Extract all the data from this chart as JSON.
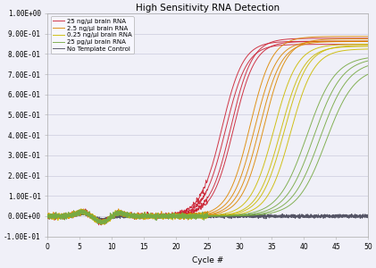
{
  "title": "High Sensitivity RNA Detection",
  "xlabel": "Cycle #",
  "xlim": [
    0,
    50
  ],
  "ylim": [
    -0.1,
    1.0
  ],
  "yticks": [
    -0.1,
    0.0,
    0.1,
    0.2,
    0.3,
    0.4,
    0.5,
    0.6,
    0.7,
    0.8,
    0.9,
    1.0
  ],
  "ytick_labels": [
    "-1.00E-01",
    "0.00E+00",
    "1.00E-01",
    "2.00E-01",
    "3.00E-01",
    "4.00E-01",
    "5.00E-01",
    "6.00E-01",
    "7.00E-01",
    "8.00E-01",
    "9.00E-01",
    "1.00E+00"
  ],
  "xticks": [
    0,
    5,
    10,
    15,
    20,
    25,
    30,
    35,
    40,
    45,
    50
  ],
  "groups": [
    {
      "label": "25 ng/μl brain RNA",
      "color": "#cc2233",
      "midpoints": [
        27.2,
        27.8,
        28.4,
        29.0
      ],
      "plateau": [
        0.86,
        0.85,
        0.87,
        0.86
      ],
      "k": 0.6
    },
    {
      "label": "2.5 ng/μl brain RNA",
      "color": "#dd8800",
      "midpoints": [
        31.5,
        32.2,
        33.0,
        33.6
      ],
      "plateau": [
        0.88,
        0.87,
        0.86,
        0.87
      ],
      "k": 0.58
    },
    {
      "label": "0.25 ng/μl brain RNA",
      "color": "#ccbb00",
      "midpoints": [
        35.5,
        36.2,
        37.0,
        37.6
      ],
      "plateau": [
        0.85,
        0.84,
        0.84,
        0.83
      ],
      "k": 0.55
    },
    {
      "label": "25 pg/μl brain RNA",
      "color": "#77aa44",
      "midpoints": [
        40.5,
        41.5,
        42.5,
        43.5
      ],
      "plateau": [
        0.79,
        0.78,
        0.76,
        0.74
      ],
      "k": 0.45
    },
    {
      "label": "No Template Control",
      "color": "#555566",
      "midpoints": [],
      "plateau": [],
      "k": 0.55
    }
  ],
  "background_color": "#f0f0f8",
  "grid_color": "#ccccdd",
  "title_fontsize": 7.5,
  "axis_fontsize": 6.5,
  "tick_fontsize": 5.5,
  "legend_fontsize": 5.0,
  "linewidth": 0.7
}
